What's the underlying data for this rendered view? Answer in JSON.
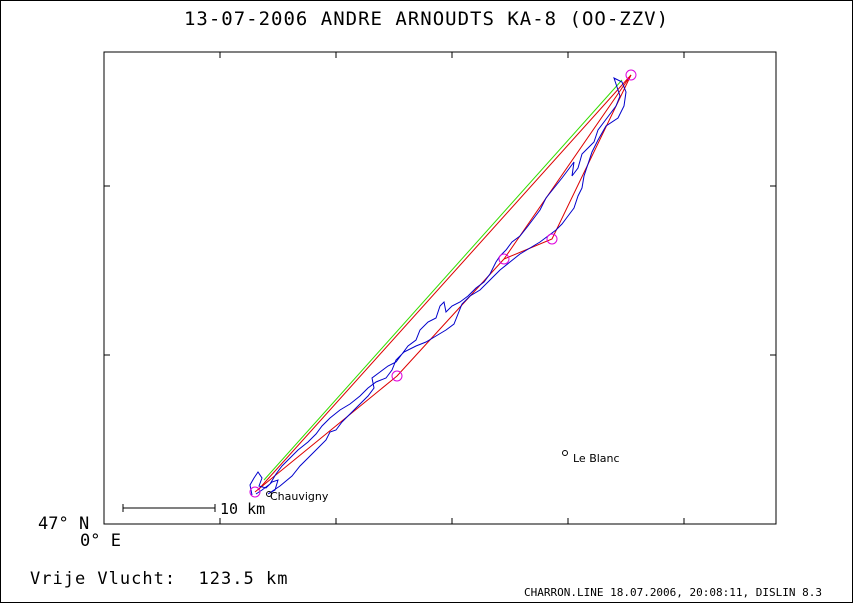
{
  "title": "13-07-2006   ANDRE ARNOUDTS   KA-8 (OO-ZZV)",
  "map": {
    "lat_label": "47° N",
    "lon_label": "0° E",
    "scale_label": "10 km",
    "places": [
      {
        "name": "Chauvigny"
      },
      {
        "name": "Le Blanc"
      }
    ],
    "colors": {
      "track": "#0000cc",
      "task": "#dd0000",
      "start_finish": "#33dd00",
      "turnpoint": "#dd00dd"
    }
  },
  "distance": {
    "label": "Vrije Vlucht:",
    "value": "123.5 km"
  },
  "footer": "CHARRON.LINE 18.07.2006, 20:08:11, DISLIN 8.3"
}
